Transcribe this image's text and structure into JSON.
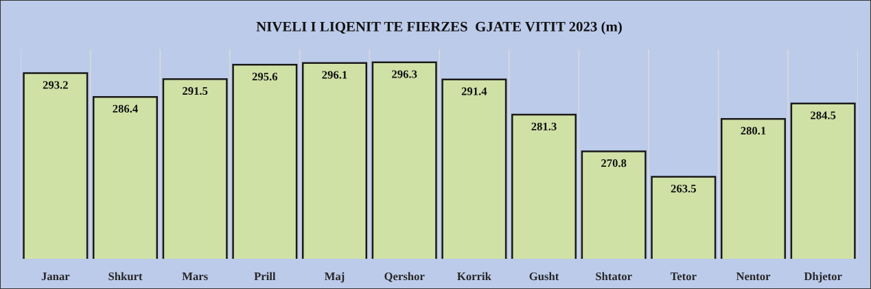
{
  "chart_data": {
    "type": "bar",
    "title": "NIVELI I LIQENIT TE FIERZES  GJATE VITIT 2023 (m)",
    "categories": [
      "Janar",
      "Shkurt",
      "Mars",
      "Prill",
      "Maj",
      "Qershor",
      "Korrik",
      "Gusht",
      "Shtator",
      "Tetor",
      "Nentor",
      "Dhjetor"
    ],
    "values": [
      293.2,
      286.4,
      291.5,
      295.6,
      296.1,
      296.3,
      291.4,
      281.3,
      270.8,
      263.5,
      280.1,
      284.5
    ],
    "color": "#d0e1a6",
    "ylim": [
      240,
      300
    ],
    "tick_labels": "x",
    "grid": "x",
    "data_labels": true
  }
}
